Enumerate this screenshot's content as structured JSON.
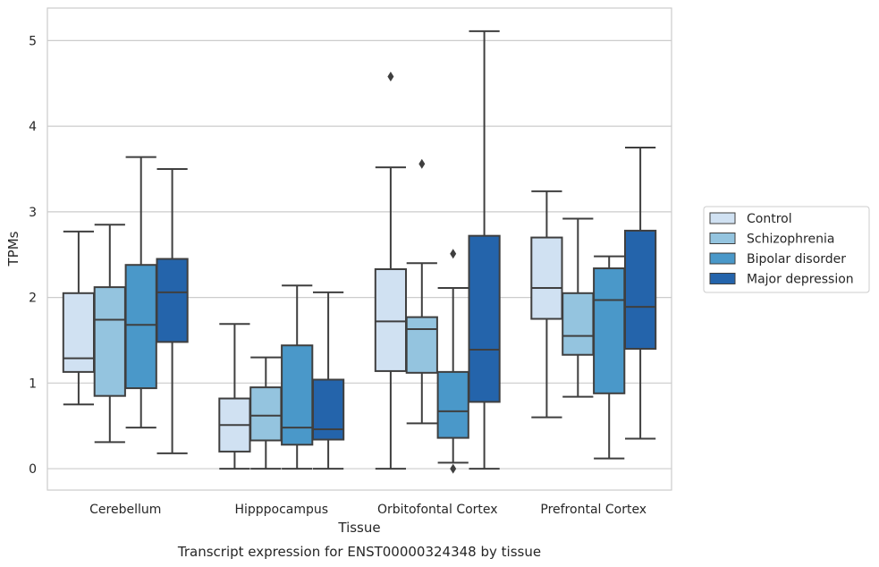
{
  "chart_data": {
    "type": "boxplot",
    "xlabel": "Tissue",
    "ylabel": "TPMs",
    "caption": "Transcript expression for ENST00000324348 by tissue",
    "ylim": [
      -0.25,
      5.38
    ],
    "yticks": [
      "0",
      "1",
      "2",
      "3",
      "4",
      "5"
    ],
    "grid": "horizontal",
    "legend_position": "right",
    "categories": [
      "Cerebellum",
      "Hipppocampus",
      "Orbitofontal Cortex",
      "Prefrontal Cortex"
    ],
    "series": [
      {
        "name": "Control",
        "color": "#d0e1f2",
        "boxes": [
          {
            "whislo": 0.75,
            "q1": 1.13,
            "med": 1.29,
            "q3": 2.05,
            "whishi": 2.77,
            "fliers": []
          },
          {
            "whislo": 0.0,
            "q1": 0.2,
            "med": 0.51,
            "q3": 0.82,
            "whishi": 1.69,
            "fliers": []
          },
          {
            "whislo": 0.0,
            "q1": 1.14,
            "med": 1.72,
            "q3": 2.33,
            "whishi": 3.52,
            "fliers": [
              4.58
            ]
          },
          {
            "whislo": 0.6,
            "q1": 1.75,
            "med": 2.11,
            "q3": 2.7,
            "whishi": 3.24,
            "fliers": []
          }
        ]
      },
      {
        "name": "Schizophrenia",
        "color": "#94c4df",
        "boxes": [
          {
            "whislo": 0.31,
            "q1": 0.85,
            "med": 1.74,
            "q3": 2.12,
            "whishi": 2.85,
            "fliers": []
          },
          {
            "whislo": 0.0,
            "q1": 0.33,
            "med": 0.62,
            "q3": 0.95,
            "whishi": 1.3,
            "fliers": []
          },
          {
            "whislo": 0.53,
            "q1": 1.12,
            "med": 1.63,
            "q3": 1.77,
            "whishi": 2.4,
            "fliers": [
              3.56
            ]
          },
          {
            "whislo": 0.84,
            "q1": 1.33,
            "med": 1.55,
            "q3": 2.05,
            "whishi": 2.92,
            "fliers": []
          }
        ]
      },
      {
        "name": "Bipolar disorder",
        "color": "#4a98c9",
        "boxes": [
          {
            "whislo": 0.48,
            "q1": 0.94,
            "med": 1.68,
            "q3": 2.38,
            "whishi": 3.64,
            "fliers": []
          },
          {
            "whislo": 0.0,
            "q1": 0.28,
            "med": 0.48,
            "q3": 1.44,
            "whishi": 2.14,
            "fliers": []
          },
          {
            "whislo": 0.07,
            "q1": 0.36,
            "med": 0.67,
            "q3": 1.13,
            "whishi": 2.11,
            "fliers": [
              2.51,
              0.0
            ]
          },
          {
            "whislo": 0.12,
            "q1": 0.88,
            "med": 1.97,
            "q3": 2.34,
            "whishi": 2.48,
            "fliers": []
          }
        ]
      },
      {
        "name": "Major depression",
        "color": "#2464ab",
        "boxes": [
          {
            "whislo": 0.18,
            "q1": 1.48,
            "med": 2.06,
            "q3": 2.45,
            "whishi": 3.5,
            "fliers": []
          },
          {
            "whislo": 0.0,
            "q1": 0.34,
            "med": 0.46,
            "q3": 1.04,
            "whishi": 2.06,
            "fliers": []
          },
          {
            "whislo": 0.0,
            "q1": 0.78,
            "med": 1.39,
            "q3": 2.72,
            "whishi": 5.11,
            "fliers": []
          },
          {
            "whislo": 0.35,
            "q1": 1.4,
            "med": 1.89,
            "q3": 2.78,
            "whishi": 3.75,
            "fliers": []
          }
        ]
      }
    ]
  }
}
